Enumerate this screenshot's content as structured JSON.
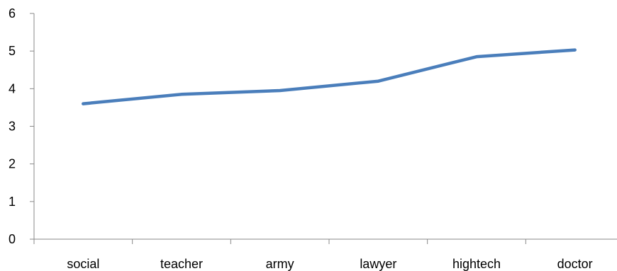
{
  "chart_data": {
    "type": "line",
    "title": "",
    "xlabel": "",
    "ylabel": "",
    "categories": [
      "social",
      "teacher",
      "army",
      "lawyer",
      "hightech",
      "doctor"
    ],
    "series": [
      {
        "values": [
          3.6,
          3.85,
          3.95,
          4.2,
          4.85,
          5.03
        ],
        "color": "#4a7ebb"
      }
    ],
    "ylim": [
      0,
      6
    ],
    "yticks": [
      "0",
      "1",
      "2",
      "3",
      "4",
      "5",
      "6"
    ],
    "grid": false,
    "legend": "none"
  }
}
